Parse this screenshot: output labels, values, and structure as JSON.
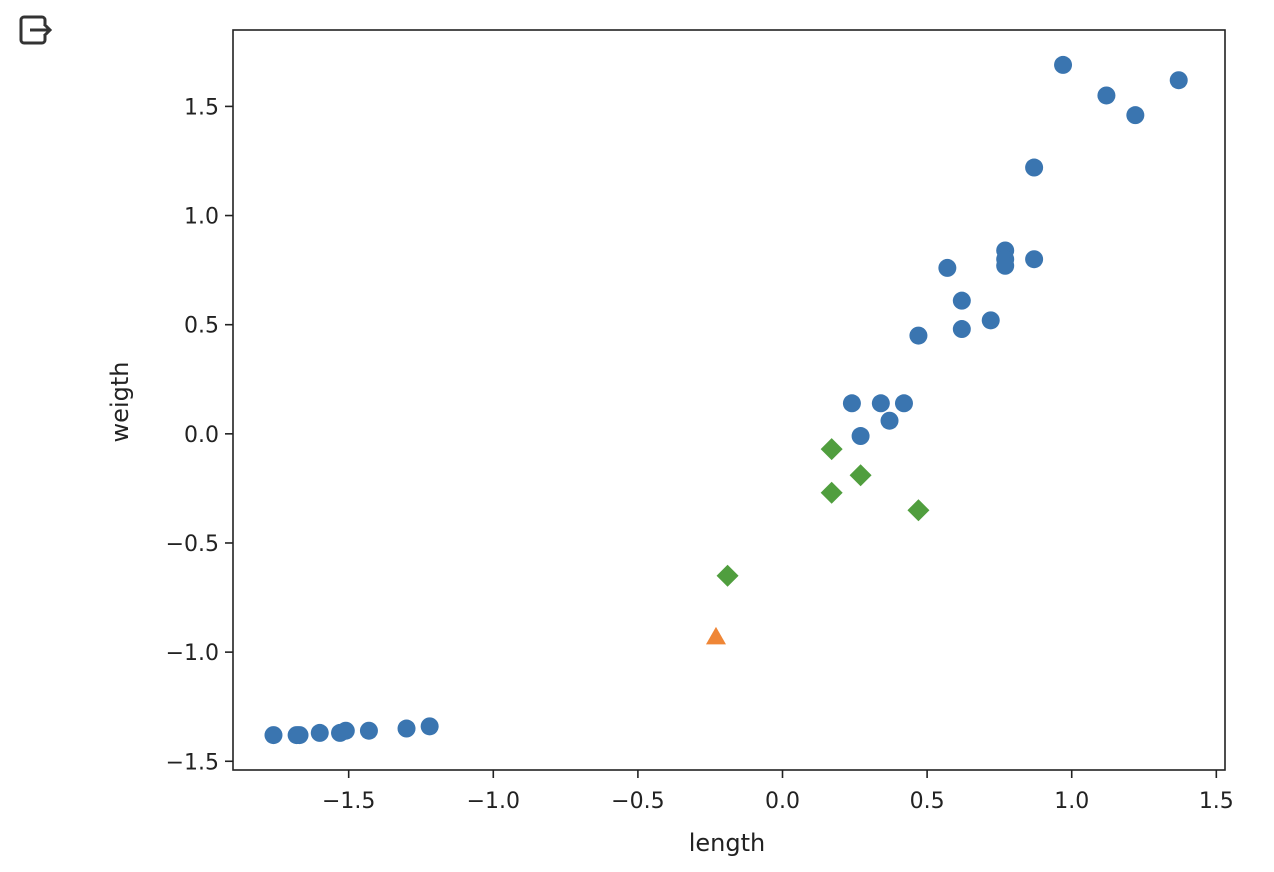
{
  "output_icon": "output-export-icon",
  "chart_data": {
    "type": "scatter",
    "xlabel": "length",
    "ylabel": "weigth",
    "xlim": [
      -1.9,
      1.53
    ],
    "ylim": [
      -1.54,
      1.85
    ],
    "xticks": [
      -1.5,
      -1.0,
      -0.5,
      0.0,
      0.5,
      1.0,
      1.5
    ],
    "yticks": [
      -1.5,
      -1.0,
      -0.5,
      0.0,
      0.5,
      1.0,
      1.5
    ],
    "xtick_labels": [
      "−1.5",
      "−1.0",
      "−0.5",
      "0.0",
      "0.5",
      "1.0",
      "1.5"
    ],
    "ytick_labels": [
      "−1.5",
      "−1.0",
      "−0.5",
      "0.0",
      "0.5",
      "1.0",
      "1.5"
    ],
    "grid": false,
    "series": [
      {
        "marker": "circle",
        "color": "#3a75b0",
        "points": [
          [
            -1.76,
            -1.38
          ],
          [
            -1.68,
            -1.38
          ],
          [
            -1.67,
            -1.38
          ],
          [
            -1.6,
            -1.37
          ],
          [
            -1.53,
            -1.37
          ],
          [
            -1.51,
            -1.36
          ],
          [
            -1.43,
            -1.36
          ],
          [
            -1.3,
            -1.35
          ],
          [
            -1.22,
            -1.34
          ],
          [
            0.24,
            0.14
          ],
          [
            0.27,
            -0.01
          ],
          [
            0.34,
            0.14
          ],
          [
            0.37,
            0.06
          ],
          [
            0.42,
            0.14
          ],
          [
            0.47,
            0.45
          ],
          [
            0.57,
            0.76
          ],
          [
            0.62,
            0.61
          ],
          [
            0.62,
            0.48
          ],
          [
            0.72,
            0.52
          ],
          [
            0.77,
            0.84
          ],
          [
            0.77,
            0.8
          ],
          [
            0.77,
            0.77
          ],
          [
            0.87,
            0.8
          ],
          [
            0.87,
            1.22
          ],
          [
            0.97,
            1.69
          ],
          [
            1.12,
            1.55
          ],
          [
            1.22,
            1.46
          ],
          [
            1.37,
            1.62
          ]
        ]
      },
      {
        "marker": "triangle",
        "color": "#ef8636",
        "points": [
          [
            -0.23,
            -0.93
          ]
        ]
      },
      {
        "marker": "diamond",
        "color": "#509e3e",
        "points": [
          [
            -0.19,
            -0.65
          ],
          [
            0.17,
            -0.07
          ],
          [
            0.17,
            -0.27
          ],
          [
            0.27,
            -0.19
          ],
          [
            0.47,
            -0.35
          ]
        ]
      }
    ]
  }
}
